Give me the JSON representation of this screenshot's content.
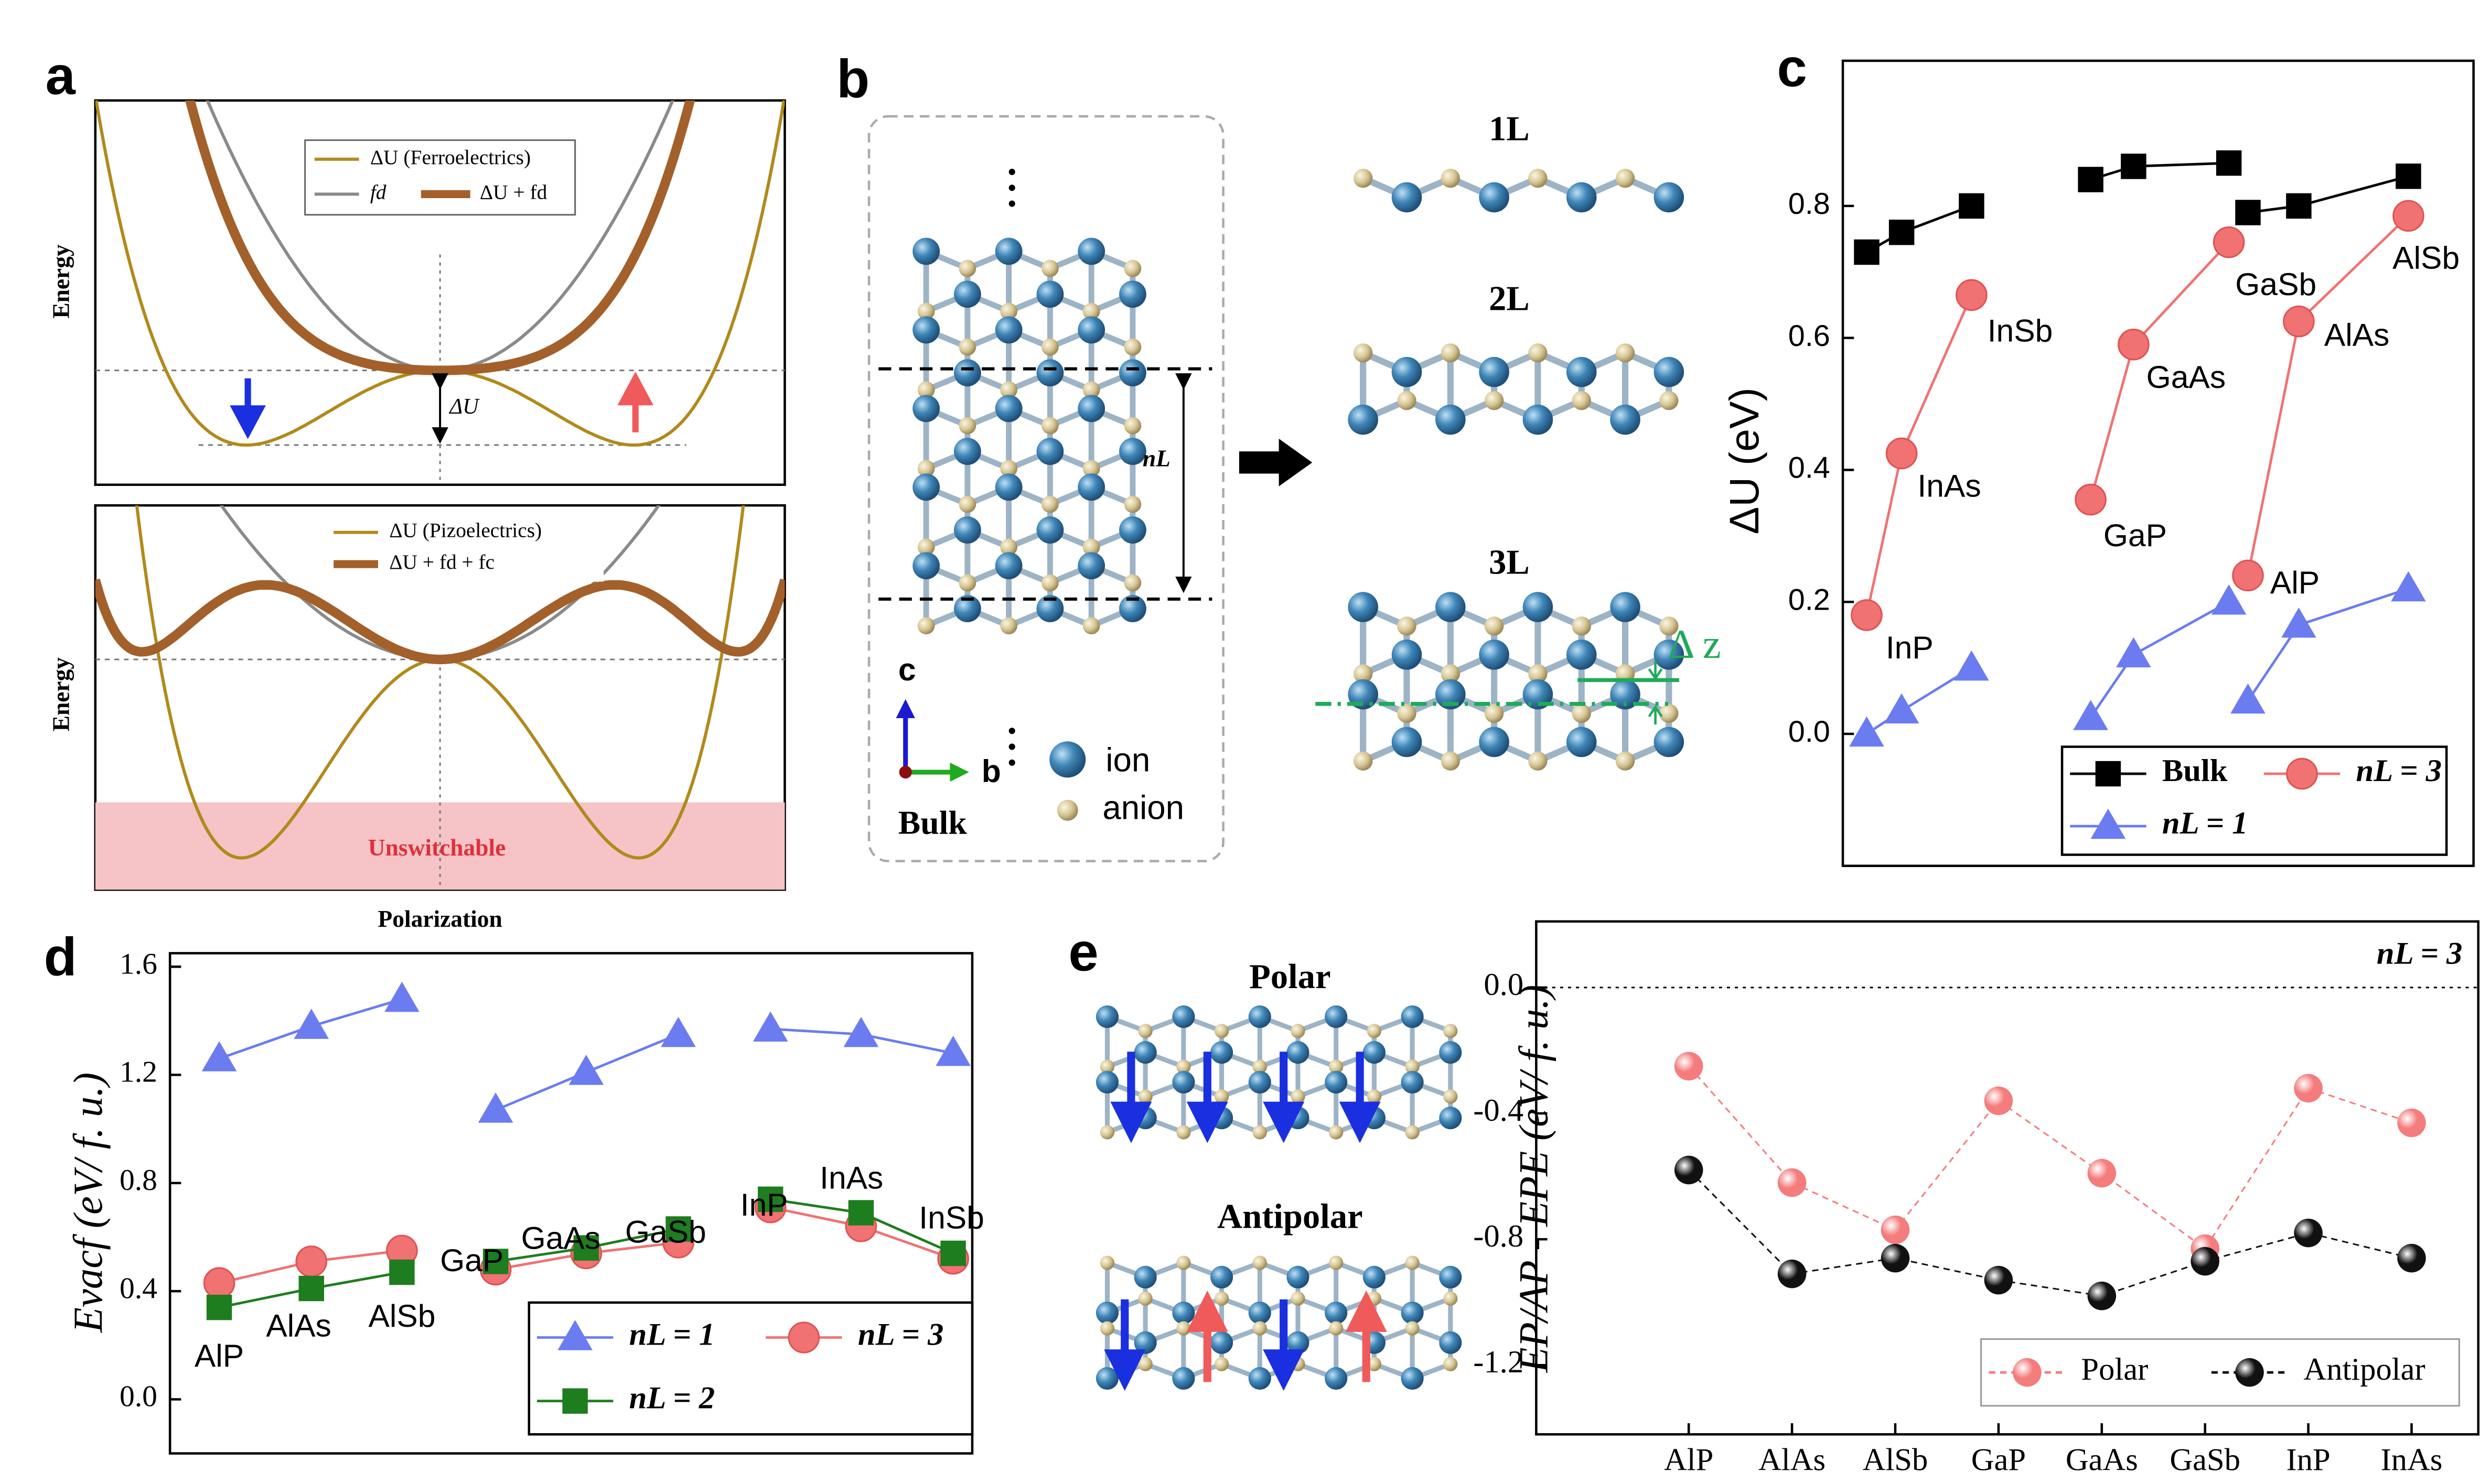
{
  "panel_labels": [
    "a",
    "b",
    "c",
    "d",
    "e"
  ],
  "schematic": {
    "top_legend": [
      "ΔU (Ferroelectrics)",
      "fd",
      "ΔU + fd"
    ],
    "bottom_legend": [
      "ΔU (Pizoelectrics)",
      "ΔU + fd + fc"
    ],
    "y_label": "Energy",
    "delta_label": "ΔU",
    "region_label": "Unswitchable",
    "x_label": "Polarization"
  },
  "structures": {
    "layers": [
      "1L",
      "2L",
      "3L"
    ],
    "nl_label": "nL",
    "axes": [
      "c",
      "b"
    ],
    "atoms": [
      "ion",
      "anion"
    ],
    "bulk_label": "Bulk",
    "dz_label": "Δ z",
    "arrangements": [
      "Polar",
      "Antipolar"
    ]
  },
  "chart_data": [
    {
      "type": "line",
      "y_label": "ΔU (eV)",
      "categories": [
        "InP",
        "InAs",
        "InSb",
        "GaP",
        "GaAs",
        "GaSb",
        "AlP",
        "AlAs",
        "AlSb"
      ],
      "series": [
        {
          "name": "Bulk",
          "color": "#000000",
          "marker": "square",
          "values": [
            0.73,
            0.76,
            0.8,
            0.84,
            0.86,
            0.865,
            0.79,
            0.8,
            0.845
          ]
        },
        {
          "name": "nL = 3",
          "color": "#f07272",
          "marker": "circle",
          "values": [
            0.18,
            0.425,
            0.665,
            0.355,
            0.59,
            0.745,
            0.24,
            0.625,
            0.785
          ]
        },
        {
          "name": "nL = 1",
          "color": "#6b7cf0",
          "marker": "triangle",
          "values": [
            0,
            0.035,
            0.1,
            0.025,
            0.12,
            0.2,
            0.05,
            0.165,
            0.22
          ]
        }
      ],
      "ylim": [
        -0.2,
        1.02
      ],
      "yticks": [
        {
          "value": 0,
          "label": "0.0"
        },
        0.2,
        0.4,
        0.6,
        0.8
      ]
    },
    {
      "type": "line",
      "y_label": "Evacf (eV/ f. u.)",
      "categories": [
        "AlP",
        "AlAs",
        "AlSb",
        "GaP",
        "GaAs",
        "GaSb",
        "InP",
        "InAs",
        "InSb"
      ],
      "series": [
        {
          "name": "nL = 1",
          "color": "#6b7cf0",
          "marker": "triangle",
          "values": [
            1.26,
            1.38,
            1.48,
            1.07,
            1.21,
            1.35,
            1.37,
            1.35,
            1.28
          ]
        },
        {
          "name": "nL = 3",
          "color": "#f07272",
          "marker": "circle",
          "values": [
            0.43,
            0.51,
            0.55,
            0.48,
            0.54,
            0.58,
            0.71,
            0.64,
            0.52
          ]
        },
        {
          "name": "nL = 2",
          "color": "#1e7d1e",
          "marker": "square",
          "values": [
            0.34,
            0.41,
            0.47,
            0.51,
            0.56,
            0.63,
            0.74,
            0.69,
            0.54
          ]
        }
      ],
      "ylim": [
        -0.2,
        1.65
      ],
      "yticks": [
        {
          "value": 0,
          "label": "0.0"
        },
        0.4,
        0.8,
        1.2,
        1.6
      ]
    },
    {
      "type": "line",
      "y_label": "EP/AP - EPE (eV/ f. u.)",
      "annotation": "nL = 3",
      "categories": [
        "AlP",
        "AlAs",
        "AlSb",
        "GaP",
        "GaAs",
        "GaSb",
        "InP",
        "InAs"
      ],
      "series": [
        {
          "name": "Polar",
          "color": "#f47c7c",
          "marker": "sphere",
          "linestyle": "dashed",
          "values": [
            -0.25,
            -0.62,
            -0.77,
            -0.36,
            -0.59,
            -0.83,
            -0.32,
            -0.43
          ]
        },
        {
          "name": "Antipolar",
          "color": "#111111",
          "marker": "sphere",
          "linestyle": "dashed",
          "values": [
            -0.58,
            -0.91,
            -0.86,
            -0.93,
            -0.98,
            -0.87,
            -0.78,
            -0.86
          ]
        }
      ],
      "ylim": [
        -1.42,
        0.21
      ],
      "yticks": [
        {
          "value": 0,
          "label": "0.0"
        },
        -0.4,
        -0.8,
        -1.2
      ],
      "hline": 0
    }
  ]
}
